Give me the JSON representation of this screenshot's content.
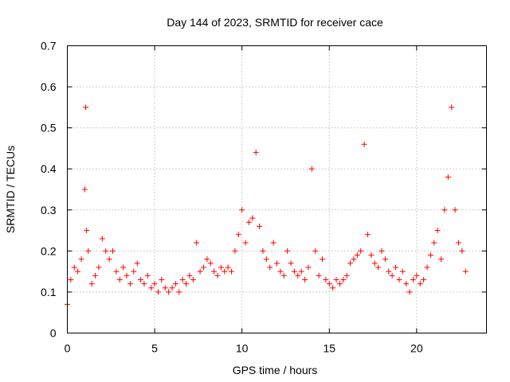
{
  "chart_data": {
    "type": "scatter",
    "title": "Day 144 of 2023, SRMTID for receiver cace",
    "xlabel": "GPS time / hours",
    "ylabel": "SRMTID / TECUs",
    "xlim": [
      0,
      24
    ],
    "ylim": [
      0,
      0.7
    ],
    "xticks": [
      0,
      5,
      10,
      15,
      20
    ],
    "yticks": [
      0,
      0.1,
      0.2,
      0.3,
      0.4,
      0.5,
      0.6,
      0.7
    ],
    "xtick_labels": [
      "0",
      "5",
      "10",
      "15",
      "20"
    ],
    "ytick_labels": [
      "0",
      "0.1",
      "0.2",
      "0.3",
      "0.4",
      "0.5",
      "0.6",
      "0.7"
    ],
    "grid": true,
    "marker": "+",
    "color": "#ff0000",
    "series": [
      {
        "name": "SRMTID",
        "x": [
          0.0,
          0.2,
          0.4,
          0.6,
          0.8,
          1.0,
          1.05,
          1.1,
          1.2,
          1.4,
          1.6,
          1.8,
          2.0,
          2.2,
          2.4,
          2.6,
          2.8,
          3.0,
          3.2,
          3.4,
          3.6,
          3.8,
          4.0,
          4.2,
          4.4,
          4.6,
          4.8,
          5.0,
          5.2,
          5.4,
          5.6,
          5.8,
          6.0,
          6.2,
          6.4,
          6.6,
          6.8,
          7.0,
          7.2,
          7.4,
          7.6,
          7.8,
          8.0,
          8.2,
          8.4,
          8.6,
          8.8,
          9.0,
          9.2,
          9.4,
          9.6,
          9.8,
          10.0,
          10.2,
          10.4,
          10.6,
          10.8,
          11.0,
          11.2,
          11.4,
          11.6,
          11.8,
          12.0,
          12.2,
          12.4,
          12.6,
          12.8,
          13.0,
          13.2,
          13.4,
          13.6,
          13.8,
          14.0,
          14.2,
          14.4,
          14.6,
          14.8,
          15.0,
          15.2,
          15.4,
          15.6,
          15.8,
          16.0,
          16.2,
          16.4,
          16.6,
          16.8,
          17.0,
          17.2,
          17.4,
          17.6,
          17.8,
          18.0,
          18.2,
          18.4,
          18.6,
          18.8,
          19.0,
          19.2,
          19.4,
          19.6,
          19.8,
          20.0,
          20.2,
          20.4,
          20.6,
          20.8,
          21.0,
          21.2,
          21.4,
          21.6,
          21.8,
          22.0,
          22.2,
          22.4,
          22.6,
          22.8
        ],
        "y": [
          0.07,
          0.13,
          0.16,
          0.15,
          0.18,
          0.35,
          0.55,
          0.25,
          0.2,
          0.12,
          0.14,
          0.16,
          0.23,
          0.2,
          0.18,
          0.2,
          0.15,
          0.13,
          0.16,
          0.14,
          0.12,
          0.15,
          0.17,
          0.13,
          0.12,
          0.14,
          0.11,
          0.12,
          0.1,
          0.13,
          0.11,
          0.1,
          0.11,
          0.12,
          0.1,
          0.13,
          0.12,
          0.14,
          0.13,
          0.22,
          0.15,
          0.16,
          0.18,
          0.17,
          0.15,
          0.14,
          0.16,
          0.15,
          0.16,
          0.15,
          0.2,
          0.24,
          0.3,
          0.22,
          0.27,
          0.28,
          0.44,
          0.26,
          0.2,
          0.18,
          0.16,
          0.22,
          0.17,
          0.15,
          0.14,
          0.2,
          0.17,
          0.15,
          0.14,
          0.15,
          0.13,
          0.16,
          0.4,
          0.2,
          0.14,
          0.18,
          0.13,
          0.12,
          0.11,
          0.13,
          0.12,
          0.13,
          0.14,
          0.17,
          0.18,
          0.19,
          0.2,
          0.46,
          0.24,
          0.19,
          0.17,
          0.16,
          0.2,
          0.18,
          0.15,
          0.14,
          0.16,
          0.13,
          0.15,
          0.12,
          0.1,
          0.13,
          0.14,
          0.12,
          0.13,
          0.16,
          0.19,
          0.22,
          0.25,
          0.18,
          0.3,
          0.38,
          0.55,
          0.3,
          0.22,
          0.2,
          0.15
        ]
      }
    ]
  }
}
